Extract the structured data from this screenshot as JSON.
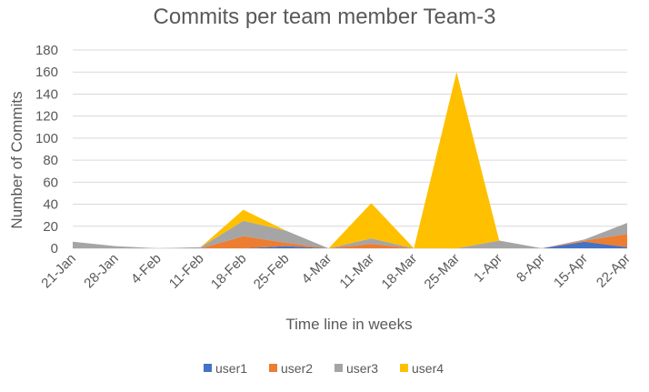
{
  "chart_data": {
    "type": "area",
    "stacked": true,
    "title": "Commits per team member Team-3",
    "xlabel": "Time line in weeks",
    "ylabel": "Number of Commits",
    "ylim": [
      0,
      180
    ],
    "yticks": [
      0,
      20,
      40,
      60,
      80,
      100,
      120,
      140,
      160,
      180
    ],
    "grid": true,
    "legend_position": "bottom",
    "categories": [
      "21-Jan",
      "28-Jan",
      "4-Feb",
      "11-Feb",
      "18-Feb",
      "25-Feb",
      "4-Mar",
      "11-Mar",
      "18-Mar",
      "25-Mar",
      "1-Apr",
      "8-Apr",
      "15-Apr",
      "22-Apr"
    ],
    "series": [
      {
        "name": "user1",
        "color": "#4472C4",
        "values": [
          0,
          0,
          0,
          0,
          0,
          2,
          0,
          0,
          0,
          0,
          0,
          0,
          6,
          1
        ]
      },
      {
        "name": "user2",
        "color": "#ED7D31",
        "values": [
          0,
          0,
          0,
          0,
          11,
          3,
          0,
          4,
          0,
          0,
          0,
          0,
          1,
          12
        ]
      },
      {
        "name": "user3",
        "color": "#A5A5A5",
        "values": [
          6,
          2,
          0,
          1,
          14,
          11,
          0,
          5,
          0,
          0,
          7,
          0,
          1,
          10
        ]
      },
      {
        "name": "user4",
        "color": "#FFC000",
        "values": [
          0,
          0,
          0,
          0,
          10,
          0,
          0,
          32,
          0,
          160,
          0,
          0,
          0,
          0
        ]
      }
    ]
  }
}
